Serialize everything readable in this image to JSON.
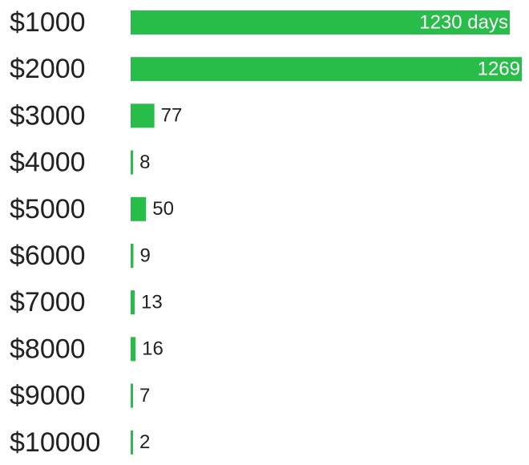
{
  "chart_data": {
    "type": "hbar",
    "categories": [
      "$1000",
      "$2000",
      "$3000",
      "$4000",
      "$5000",
      "$6000",
      "$7000",
      "$8000",
      "$9000",
      "$10000"
    ],
    "values": [
      1230,
      1269,
      77,
      8,
      50,
      9,
      13,
      16,
      7,
      2
    ],
    "value_labels": [
      "1230 days",
      "1269",
      "77",
      "8",
      "50",
      "9",
      "13",
      "16",
      "7",
      "2"
    ],
    "color": "#27bd48"
  }
}
